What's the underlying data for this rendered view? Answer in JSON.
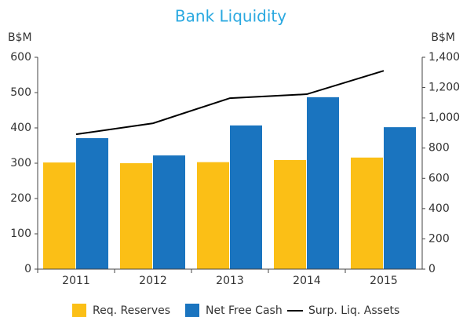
{
  "chart_data": {
    "type": "bar",
    "title": "Bank Liquidity",
    "y_label": "B$M",
    "y2_label": "B$M",
    "categories": [
      "2011",
      "2012",
      "2013",
      "2014",
      "2015"
    ],
    "series": [
      {
        "name": "Req. Reserves",
        "color": "#fbbf16",
        "values": [
          302,
          300,
          303,
          309,
          316
        ]
      },
      {
        "name": "Net Free Cash",
        "color": "#1a74bf",
        "values": [
          371,
          322,
          407,
          487,
          402
        ]
      },
      {
        "name": "Surp. Liq. Assets",
        "color": "#000000",
        "values": [
          891,
          964,
          1130,
          1156,
          1311
        ],
        "axis": "y2",
        "type": "line"
      }
    ],
    "ylim": [
      0,
      600
    ],
    "yticks": [
      0,
      100,
      200,
      300,
      400,
      500,
      600
    ],
    "y2lim": [
      0,
      1400
    ],
    "y2ticks": [
      0,
      200,
      400,
      600,
      800,
      {
        "value": 1000,
        "label": "1,000"
      },
      {
        "value": 1200,
        "label": "1,200"
      },
      {
        "value": 1400,
        "label": "1,400"
      }
    ],
    "legend": "bottom"
  }
}
